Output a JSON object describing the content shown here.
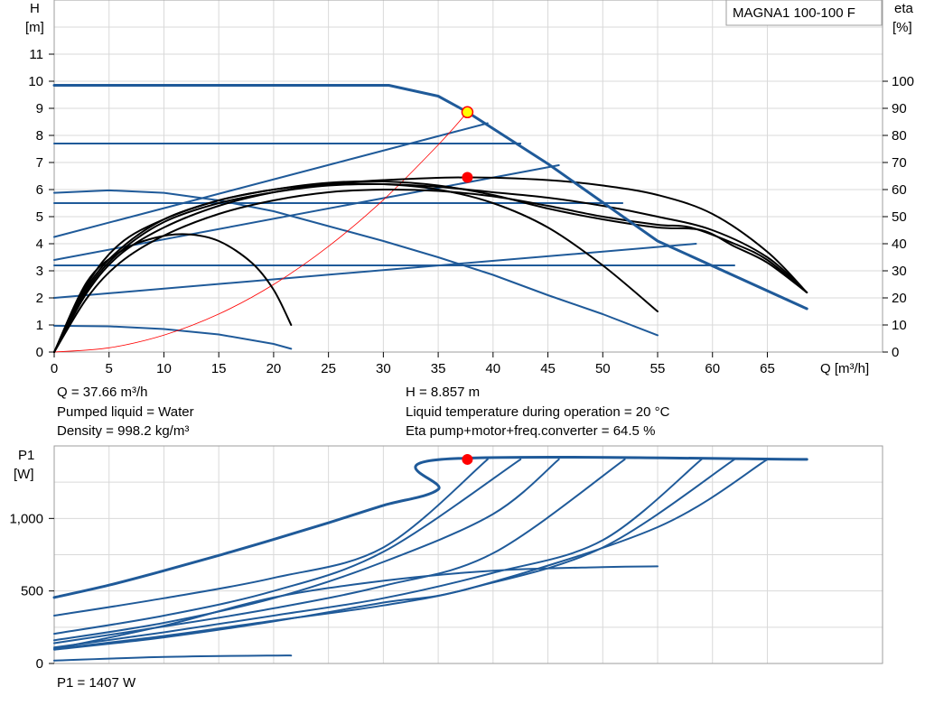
{
  "title": "MAGNA1 100-100 F",
  "colors": {
    "system": "#1f5a99",
    "pump": "#000000",
    "load": "#ff0000",
    "duty_fill": "#ffff00",
    "grid": "#d9d9d9"
  },
  "info": {
    "q": "Q = 37.66 m³/h",
    "liquid": "Pumped liquid = Water",
    "density": "Density = 998.2 kg/m³",
    "h": "H = 8.857 m",
    "temp": "Liquid temperature during operation = 20 °C",
    "eta": "Eta pump+motor+freq.converter = 64.5 %",
    "p1": "P1 = 1407 W"
  },
  "chart_data": [
    {
      "type": "line",
      "name": "head",
      "x_label": "Q [m³/h]",
      "y_label_line1": "H",
      "y_label_line2": "[m]",
      "y2_label_line1": "eta",
      "y2_label_line2": "[%]",
      "xlim": [
        0,
        75.5
      ],
      "ylim": [
        0,
        13
      ],
      "y2lim": [
        0,
        130
      ],
      "x_ticks": [
        0,
        5,
        10,
        15,
        20,
        25,
        30,
        35,
        40,
        45,
        50,
        55,
        60,
        65
      ],
      "y_ticks": [
        0,
        1,
        2,
        3,
        4,
        5,
        6,
        7,
        8,
        9,
        10,
        11
      ],
      "y2_ticks": [
        0,
        10,
        20,
        30,
        40,
        50,
        60,
        70,
        80,
        90,
        100
      ],
      "grid": true,
      "series": [
        {
          "kind": "max_curve",
          "axis": "H",
          "points": [
            [
              0,
              9.85
            ],
            [
              30.5,
              9.85
            ],
            [
              35,
              9.45
            ],
            [
              37.66,
              8.86
            ],
            [
              45,
              6.95
            ],
            [
              55,
              4.1
            ],
            [
              68.6,
              1.6
            ]
          ]
        },
        {
          "kind": "const_curve",
          "axis": "H",
          "points": [
            [
              0,
              7.7
            ],
            [
              42.5,
              7.7
            ]
          ]
        },
        {
          "kind": "const_curve",
          "axis": "H",
          "points": [
            [
              0,
              5.5
            ],
            [
              51.8,
              5.5
            ]
          ]
        },
        {
          "kind": "const_curve",
          "axis": "H",
          "points": [
            [
              0,
              3.2
            ],
            [
              62,
              3.2
            ]
          ]
        },
        {
          "kind": "prop_curve",
          "axis": "H",
          "points": [
            [
              0,
              4.25
            ],
            [
              39.5,
              8.45
            ]
          ]
        },
        {
          "kind": "prop_curve",
          "axis": "H",
          "points": [
            [
              0,
              3.4
            ],
            [
              46,
              6.9
            ]
          ]
        },
        {
          "kind": "prop_curve",
          "axis": "H",
          "points": [
            [
              0,
              2.0
            ],
            [
              58.5,
              4.0
            ]
          ]
        },
        {
          "kind": "min_curve",
          "axis": "H",
          "points": [
            [
              0,
              5.88
            ],
            [
              5,
              5.97
            ],
            [
              10,
              5.88
            ],
            [
              15,
              5.6
            ],
            [
              20,
              5.2
            ],
            [
              25,
              4.65
            ],
            [
              30,
              4.1
            ],
            [
              35,
              3.5
            ],
            [
              40,
              2.85
            ],
            [
              45,
              2.1
            ],
            [
              50,
              1.4
            ],
            [
              55,
              0.62
            ]
          ]
        },
        {
          "kind": "min_curve",
          "axis": "H",
          "points": [
            [
              0,
              0.97
            ],
            [
              5,
              0.95
            ],
            [
              10,
              0.85
            ],
            [
              15,
              0.65
            ],
            [
              20,
              0.3
            ],
            [
              21.6,
              0.12
            ]
          ]
        },
        {
          "kind": "eta",
          "axis": "eta",
          "points": [
            [
              0,
              0
            ],
            [
              3,
              22
            ],
            [
              6,
              36
            ],
            [
              10,
              46
            ],
            [
              15,
              54
            ],
            [
              20,
              59
            ],
            [
              25,
              62
            ],
            [
              30,
              63.5
            ],
            [
              37.66,
              64.5
            ],
            [
              45,
              63.5
            ],
            [
              50,
              61.5
            ],
            [
              55,
              58
            ],
            [
              60,
              51
            ],
            [
              65,
              37
            ],
            [
              68.6,
              22
            ]
          ]
        },
        {
          "kind": "eta",
          "axis": "eta",
          "points": [
            [
              0,
              0
            ],
            [
              3,
              20
            ],
            [
              6,
              33
            ],
            [
              10,
              43
            ],
            [
              15,
              51
            ],
            [
              20,
              56
            ],
            [
              25,
              59
            ],
            [
              30,
              60
            ],
            [
              35,
              59.5
            ],
            [
              40,
              57.5
            ],
            [
              45,
              54
            ],
            [
              50,
              50
            ],
            [
              55,
              47
            ],
            [
              58,
              46
            ],
            [
              62,
              40
            ],
            [
              65,
              34
            ],
            [
              68.6,
              22
            ]
          ]
        },
        {
          "kind": "eta",
          "axis": "eta",
          "points": [
            [
              0,
              0
            ],
            [
              3,
              25
            ],
            [
              6,
              40
            ],
            [
              10,
              49
            ],
            [
              15,
              56
            ],
            [
              20,
              60
            ],
            [
              25,
              62.5
            ],
            [
              30,
              63
            ],
            [
              35,
              61.5
            ],
            [
              40,
              58
            ],
            [
              45,
              53
            ],
            [
              50,
              49
            ],
            [
              55,
              46
            ],
            [
              59,
              45
            ],
            [
              62,
              39
            ],
            [
              65,
              33
            ],
            [
              68.6,
              22
            ]
          ]
        },
        {
          "kind": "eta",
          "axis": "eta",
          "points": [
            [
              0,
              0
            ],
            [
              3,
              24
            ],
            [
              6,
              38
            ],
            [
              10,
              49
            ],
            [
              15,
              56
            ],
            [
              20,
              60
            ],
            [
              25,
              62
            ],
            [
              30,
              62
            ],
            [
              35,
              60
            ],
            [
              40,
              55
            ],
            [
              45,
              46
            ],
            [
              50,
              32
            ],
            [
              55,
              15
            ]
          ]
        },
        {
          "kind": "eta",
          "axis": "eta",
          "points": [
            [
              0,
              0
            ],
            [
              3,
              23
            ],
            [
              6,
              37
            ],
            [
              10,
              48
            ],
            [
              15,
              55
            ],
            [
              20,
              59
            ],
            [
              25,
              61.5
            ],
            [
              30,
              62
            ],
            [
              35,
              61
            ],
            [
              40,
              59
            ],
            [
              45,
              57
            ],
            [
              50,
              54
            ],
            [
              55,
              50
            ],
            [
              60,
              45
            ],
            [
              65,
              35
            ],
            [
              68.6,
              22
            ]
          ]
        },
        {
          "kind": "eta",
          "axis": "eta",
          "points": [
            [
              0,
              0
            ],
            [
              3,
              26
            ],
            [
              6,
              37
            ],
            [
              9,
              42
            ],
            [
              12,
              43.5
            ],
            [
              15,
              41
            ],
            [
              18,
              33
            ],
            [
              20,
              23
            ],
            [
              21.6,
              10
            ]
          ]
        },
        {
          "kind": "load",
          "axis": "H",
          "points": [
            [
              0,
              0
            ],
            [
              5,
              0.156
            ],
            [
              10,
              0.624
            ],
            [
              15,
              1.405
            ],
            [
              20,
              2.498
            ],
            [
              25,
              3.903
            ],
            [
              30,
              5.62
            ],
            [
              35,
              7.65
            ],
            [
              37.66,
              8.857
            ]
          ]
        }
      ],
      "duty_point": {
        "q": 37.66,
        "h": 8.857,
        "eta": 64.5
      }
    },
    {
      "type": "line",
      "name": "power",
      "y_label_line1": "P1",
      "y_label_line2": "[W]",
      "xlim": [
        0,
        75.5
      ],
      "ylim": [
        0,
        1500
      ],
      "y_ticks": [
        0,
        500,
        1000
      ],
      "y_tick_labels": [
        "0",
        "500",
        "1,000"
      ],
      "grid": true,
      "series": [
        {
          "kind": "max_curve",
          "points": [
            [
              0,
              455
            ],
            [
              5,
              540
            ],
            [
              10,
              640
            ],
            [
              15,
              745
            ],
            [
              20,
              855
            ],
            [
              25,
              970
            ],
            [
              30,
              1090
            ],
            [
              35,
              1200
            ],
            [
              35.3,
              1407
            ],
            [
              68.6,
              1407
            ]
          ]
        },
        {
          "kind": "p1",
          "points": [
            [
              0,
              330
            ],
            [
              10,
              450
            ],
            [
              20,
              590
            ],
            [
              30,
              800
            ],
            [
              39.5,
              1407
            ]
          ]
        },
        {
          "kind": "p1",
          "points": [
            [
              0,
              205
            ],
            [
              10,
              330
            ],
            [
              20,
              500
            ],
            [
              30,
              770
            ],
            [
              42.5,
              1407
            ]
          ]
        },
        {
          "kind": "p1",
          "points": [
            [
              0,
              160
            ],
            [
              10,
              280
            ],
            [
              20,
              450
            ],
            [
              30,
              700
            ],
            [
              40,
              1030
            ],
            [
              46,
              1407
            ]
          ]
        },
        {
          "kind": "p1",
          "points": [
            [
              0,
              140
            ],
            [
              10,
              255
            ],
            [
              20,
              380
            ],
            [
              30,
              535
            ],
            [
              40,
              760
            ],
            [
              52,
              1407
            ]
          ]
        },
        {
          "kind": "p1",
          "points": [
            [
              0,
              110
            ],
            [
              10,
              215
            ],
            [
              20,
              330
            ],
            [
              30,
              450
            ],
            [
              40,
              625
            ],
            [
              50,
              850
            ],
            [
              59,
              1407
            ]
          ]
        },
        {
          "kind": "p1",
          "points": [
            [
              0,
              100
            ],
            [
              10,
              190
            ],
            [
              20,
              295
            ],
            [
              30,
              400
            ],
            [
              38,
              520
            ],
            [
              50,
              800
            ],
            [
              62,
              1407
            ]
          ]
        },
        {
          "kind": "p1",
          "points": [
            [
              0,
              95
            ],
            [
              10,
              180
            ],
            [
              20,
              290
            ],
            [
              30,
              420
            ],
            [
              38,
              520
            ],
            [
              55,
              940
            ],
            [
              65,
              1407
            ]
          ]
        },
        {
          "kind": "min_curve",
          "points": [
            [
              0,
              100
            ],
            [
              10,
              260
            ],
            [
              20,
              455
            ],
            [
              30,
              570
            ],
            [
              40,
              640
            ],
            [
              50,
              665
            ],
            [
              55,
              670
            ]
          ]
        },
        {
          "kind": "min_curve",
          "points": [
            [
              0,
              20
            ],
            [
              10,
              45
            ],
            [
              20,
              55
            ],
            [
              21.6,
              55
            ]
          ]
        }
      ],
      "duty_point": {
        "q": 37.66,
        "p1": 1407
      }
    }
  ]
}
